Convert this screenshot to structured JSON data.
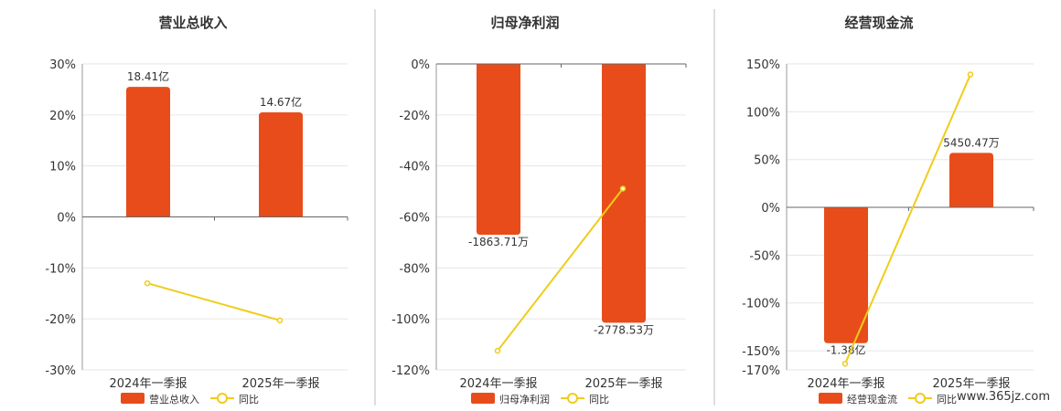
{
  "chart_data": [
    {
      "type": "bar",
      "title": "营业总收入",
      "categories": [
        "2024年一季报",
        "2025年一季报"
      ],
      "ylim": [
        -30,
        30
      ],
      "yticks": [
        30,
        20,
        10,
        0,
        -10,
        -20,
        -30
      ],
      "tick_suffix": "%",
      "grid": true,
      "legend_position": "bottom",
      "series": [
        {
          "name": "营业总收入",
          "type": "bar",
          "values": [
            25.5,
            20.5
          ],
          "labels": [
            "18.41亿",
            "14.67亿"
          ],
          "color": "#e84c1a"
        },
        {
          "name": "同比",
          "type": "line",
          "values": [
            -13.0,
            -20.3
          ],
          "color": "#f0cc1a"
        }
      ]
    },
    {
      "type": "bar",
      "title": "归母净利润",
      "categories": [
        "2024年一季报",
        "2025年一季报"
      ],
      "ylim": [
        -120,
        0
      ],
      "yticks": [
        0,
        -20,
        -40,
        -60,
        -80,
        -100,
        -120
      ],
      "tick_suffix": "%",
      "grid": true,
      "legend_position": "bottom",
      "series": [
        {
          "name": "归母净利润",
          "type": "bar",
          "values": [
            -67.0,
            -101.5
          ],
          "labels": [
            "-1863.71万",
            "-2778.53万"
          ],
          "color": "#e84c1a"
        },
        {
          "name": "同比",
          "type": "line",
          "values": [
            -112.5,
            -48.9
          ],
          "color": "#f0cc1a"
        }
      ]
    },
    {
      "type": "bar",
      "title": "经营现金流",
      "categories": [
        "2024年一季报",
        "2025年一季报"
      ],
      "ylim": [
        -170,
        150
      ],
      "yticks": [
        150,
        100,
        50,
        0,
        -50,
        -100,
        -150,
        -170
      ],
      "tick_suffix": "%",
      "grid": true,
      "legend_position": "bottom",
      "series": [
        {
          "name": "经营现金流",
          "type": "bar",
          "values": [
            -142.0,
            57.0
          ],
          "labels": [
            "-1.38亿",
            "5450.47万"
          ],
          "color": "#e84c1a"
        },
        {
          "name": "同比",
          "type": "line",
          "values": [
            -163.5,
            139.0
          ],
          "color": "#f0cc1a"
        }
      ]
    }
  ],
  "watermark": "www.365jz.com"
}
